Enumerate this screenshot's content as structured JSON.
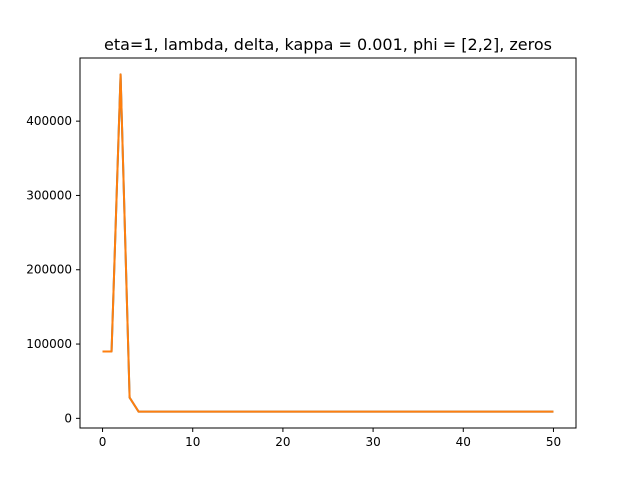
{
  "chart_data": {
    "type": "line",
    "title": "eta=1, lambda, delta, kappa  = 0.001, phi = [2,2], zeros",
    "xlabel": "",
    "ylabel": "",
    "xlim": [
      -2.5,
      52.5
    ],
    "ylim": [
      -13000,
      485000
    ],
    "xticks": [
      0,
      10,
      20,
      30,
      40,
      50
    ],
    "yticks": [
      0,
      100000,
      200000,
      300000,
      400000
    ],
    "grid": false,
    "series": [
      {
        "color": "#1f77b4",
        "x": [
          0,
          1,
          2,
          3,
          4,
          5,
          6,
          7,
          8,
          9,
          10,
          11,
          12,
          13,
          14,
          15,
          16,
          17,
          18,
          19,
          20,
          21,
          22,
          23,
          24,
          25,
          26,
          27,
          28,
          29,
          30,
          31,
          32,
          33,
          34,
          35,
          36,
          37,
          38,
          39,
          40,
          41,
          42,
          43,
          44,
          45,
          46,
          47,
          48,
          49,
          50
        ],
        "values": [
          90000,
          90000,
          463000,
          28000,
          9000,
          9000,
          9000,
          9000,
          9000,
          9000,
          9000,
          9000,
          9000,
          9000,
          9000,
          9000,
          9000,
          9000,
          9000,
          9000,
          9000,
          9000,
          9000,
          9000,
          9000,
          9000,
          9000,
          9000,
          9000,
          9000,
          9000,
          9000,
          9000,
          9000,
          9000,
          9000,
          9000,
          9000,
          9000,
          9000,
          9000,
          9000,
          9000,
          9000,
          9000,
          9000,
          9000,
          9000,
          9000,
          9000,
          9000
        ]
      },
      {
        "color": "#ff7f0e",
        "x": [
          0,
          1,
          2,
          3,
          4,
          5,
          6,
          7,
          8,
          9,
          10,
          11,
          12,
          13,
          14,
          15,
          16,
          17,
          18,
          19,
          20,
          21,
          22,
          23,
          24,
          25,
          26,
          27,
          28,
          29,
          30,
          31,
          32,
          33,
          34,
          35,
          36,
          37,
          38,
          39,
          40,
          41,
          42,
          43,
          44,
          45,
          46,
          47,
          48,
          49,
          50
        ],
        "values": [
          90000,
          90000,
          463000,
          28000,
          9000,
          9000,
          9000,
          9000,
          9000,
          9000,
          9000,
          9000,
          9000,
          9000,
          9000,
          9000,
          9000,
          9000,
          9000,
          9000,
          9000,
          9000,
          9000,
          9000,
          9000,
          9000,
          9000,
          9000,
          9000,
          9000,
          9000,
          9000,
          9000,
          9000,
          9000,
          9000,
          9000,
          9000,
          9000,
          9000,
          9000,
          9000,
          9000,
          9000,
          9000,
          9000,
          9000,
          9000,
          9000,
          9000,
          9000
        ]
      }
    ],
    "xtick_labels": [
      "0",
      "10",
      "20",
      "30",
      "40",
      "50"
    ],
    "ytick_labels": [
      "0",
      "100000",
      "200000",
      "300000",
      "400000"
    ]
  }
}
